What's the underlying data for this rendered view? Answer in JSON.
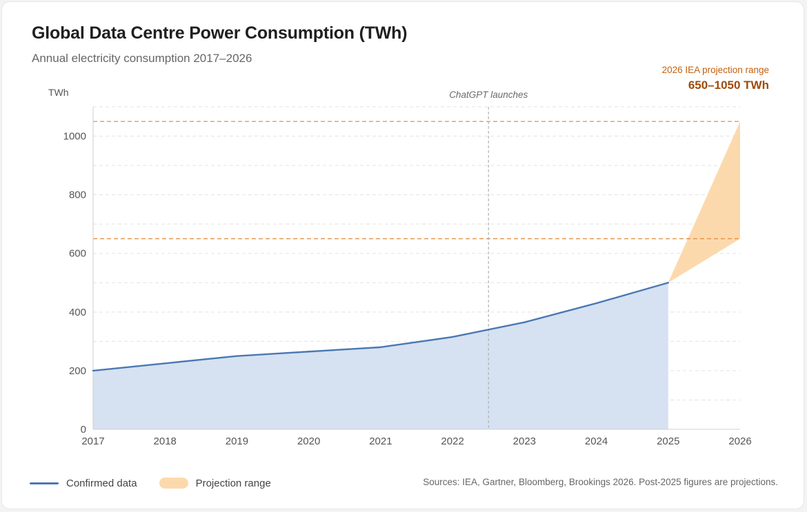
{
  "header": {
    "title": "Global Data Centre Power Consumption (TWh)",
    "subtitle": "Annual electricity consumption 2017–2026",
    "projection_label": "2026 IEA projection range",
    "projection_value": "650–1050 TWh"
  },
  "chart_data": {
    "type": "area",
    "title": "Global Data Centre Power Consumption (TWh)",
    "subtitle": "Annual electricity consumption 2017–2026",
    "ylabel": "TWh",
    "xlabel": "",
    "x": [
      "2017",
      "2018",
      "2019",
      "2020",
      "2021",
      "2022",
      "2023",
      "2024",
      "2025",
      "2026"
    ],
    "ylim": [
      0,
      1100
    ],
    "yticks": [
      0,
      200,
      400,
      600,
      800,
      1000
    ],
    "grid": true,
    "series": [
      {
        "name": "Confirmed data",
        "x": [
          2017,
          2018,
          2019,
          2020,
          2021,
          2022,
          2023,
          2024,
          2025
        ],
        "values": [
          200,
          225,
          250,
          265,
          280,
          315,
          365,
          430,
          500
        ],
        "color": "#4a78b4",
        "fill": "#d6e2f1"
      }
    ],
    "projection_range": {
      "name": "Projection range",
      "from_year": 2025,
      "from_value": 500,
      "to_year": 2026,
      "low": 650,
      "high": 1050,
      "color": "#fcd9ad",
      "reference_line_color": "#e39042"
    },
    "annotation": {
      "text": "ChatGPT launches",
      "x": 2022.5
    },
    "legend": "bottom-left"
  },
  "legend": {
    "confirmed": "Confirmed data",
    "projection": "Projection range"
  },
  "footer": {
    "sources": "Sources: IEA, Gartner, Bloomberg, Brookings 2026. Post-2025 figures are projections."
  }
}
